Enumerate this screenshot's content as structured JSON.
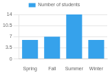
{
  "chart_data": {
    "type": "bar",
    "categories": [
      "Spring",
      "Fall",
      "Summer",
      "Winter"
    ],
    "series": [
      {
        "name": "Number of students",
        "color": "#36a2eb",
        "values": [
          6,
          7,
          14,
          6
        ]
      }
    ],
    "ylim": [
      0,
      14
    ],
    "yticks": [
      0,
      3.5,
      7,
      10.5,
      14
    ],
    "grid": true,
    "legend": "top"
  }
}
